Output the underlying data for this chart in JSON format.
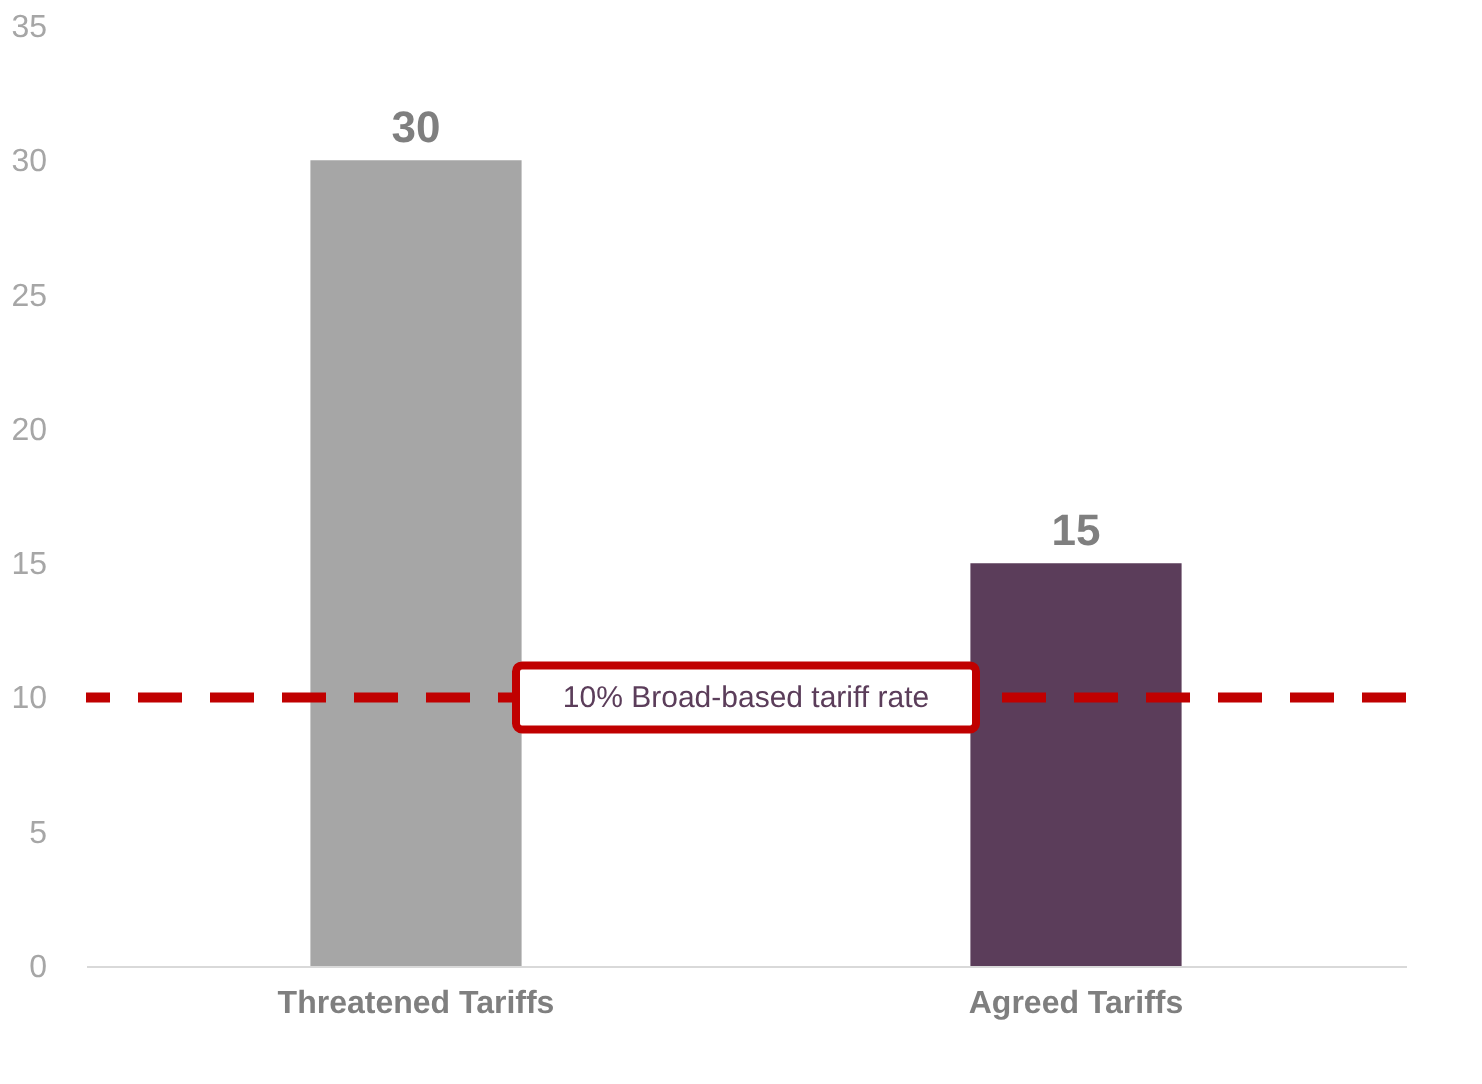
{
  "chart_data": {
    "type": "bar",
    "categories": [
      "Threatened Tariffs",
      "Agreed Tariffs"
    ],
    "values": [
      30,
      15
    ],
    "colors": [
      "#a6a6a6",
      "#5b3d5a"
    ],
    "ylim": [
      0,
      35
    ],
    "yticks": [
      0,
      5,
      10,
      15,
      20,
      25,
      30,
      35
    ],
    "grid": false,
    "data_labels": true,
    "ref_lines": [
      {
        "axis": "y",
        "value": 10,
        "label": "10% Broad-based tariff rate",
        "color": "#c00000",
        "line_style": "dashed"
      }
    ]
  }
}
